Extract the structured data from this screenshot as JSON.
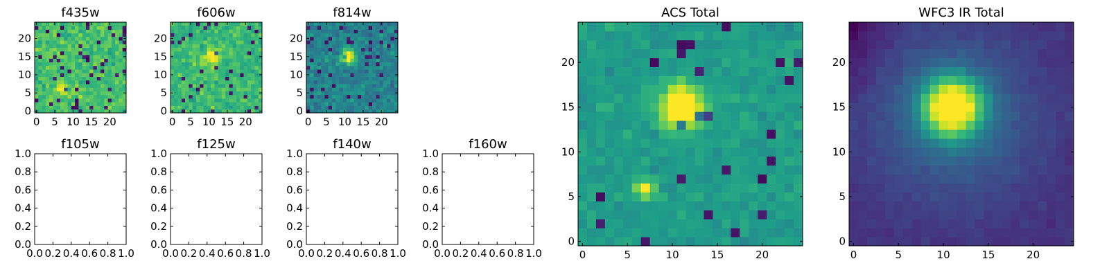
{
  "figure": {
    "panels": [
      {
        "id": "f435w",
        "title": "f435w",
        "kind": "image",
        "variant": "f435w",
        "x_ticks": [
          "0",
          "5",
          "10",
          "15",
          "20"
        ],
        "y_ticks": [
          "0",
          "5",
          "10",
          "15",
          "20"
        ]
      },
      {
        "id": "f606w",
        "title": "f606w",
        "kind": "image",
        "variant": "f606w",
        "x_ticks": [
          "0",
          "5",
          "10",
          "15",
          "20"
        ],
        "y_ticks": [
          "0",
          "5",
          "10",
          "15",
          "20"
        ]
      },
      {
        "id": "f814w",
        "title": "f814w",
        "kind": "image",
        "variant": "f814w",
        "x_ticks": [
          "0",
          "5",
          "10",
          "15",
          "20"
        ],
        "y_ticks": [
          "0",
          "5",
          "10",
          "15",
          "20"
        ]
      },
      {
        "id": "f105w",
        "title": "f105w",
        "kind": "empty",
        "x_ticks": [
          "0.0",
          "0.2",
          "0.4",
          "0.6",
          "0.8",
          "1.0"
        ],
        "y_ticks": [
          "0.0",
          "0.2",
          "0.4",
          "0.6",
          "0.8",
          "1.0"
        ]
      },
      {
        "id": "f125w",
        "title": "f125w",
        "kind": "empty",
        "x_ticks": [
          "0.0",
          "0.2",
          "0.4",
          "0.6",
          "0.8",
          "1.0"
        ],
        "y_ticks": [
          "0.0",
          "0.2",
          "0.4",
          "0.6",
          "0.8",
          "1.0"
        ]
      },
      {
        "id": "f140w",
        "title": "f140w",
        "kind": "empty",
        "x_ticks": [
          "0.0",
          "0.2",
          "0.4",
          "0.6",
          "0.8",
          "1.0"
        ],
        "y_ticks": [
          "0.0",
          "0.2",
          "0.4",
          "0.6",
          "0.8",
          "1.0"
        ]
      },
      {
        "id": "f160w",
        "title": "f160w",
        "kind": "empty",
        "x_ticks": [
          "0.0",
          "0.2",
          "0.4",
          "0.6",
          "0.8",
          "1.0"
        ],
        "y_ticks": [
          "0.0",
          "0.2",
          "0.4",
          "0.6",
          "0.8",
          "1.0"
        ]
      },
      {
        "id": "acs-total",
        "title": "ACS Total",
        "kind": "image",
        "variant": "acs",
        "x_ticks": [
          "0",
          "5",
          "10",
          "15",
          "20"
        ],
        "y_ticks": [
          "0",
          "5",
          "10",
          "15",
          "20"
        ]
      },
      {
        "id": "wfc3-ir-total",
        "title": "WFC3 IR Total",
        "kind": "image",
        "variant": "wfc3",
        "x_ticks": [
          "0",
          "5",
          "10",
          "15",
          "20"
        ],
        "y_ticks": [
          "0",
          "5",
          "10",
          "15",
          "20"
        ]
      }
    ]
  },
  "chart_data": [
    {
      "type": "heatmap",
      "title": "f435w",
      "colormap": "viridis",
      "grid_size": [
        25,
        25
      ],
      "xlim": [
        -0.5,
        24.5
      ],
      "ylim": [
        -0.5,
        24.5
      ],
      "grid": false,
      "features": [
        {
          "x": 7,
          "y": 6,
          "note": "faint bright pixel"
        }
      ]
    },
    {
      "type": "heatmap",
      "title": "f606w",
      "colormap": "viridis",
      "grid_size": [
        25,
        25
      ],
      "xlim": [
        -0.5,
        24.5
      ],
      "ylim": [
        -0.5,
        24.5
      ],
      "grid": false,
      "features": [
        {
          "x": 11,
          "y": 15
        }
      ]
    },
    {
      "type": "heatmap",
      "title": "f814w",
      "colormap": "viridis",
      "grid_size": [
        25,
        25
      ],
      "xlim": [
        -0.5,
        24.5
      ],
      "ylim": [
        -0.5,
        24.5
      ],
      "grid": false,
      "features": [
        {
          "x": 11,
          "y": 15
        }
      ]
    },
    {
      "type": "heatmap",
      "title": "f105w",
      "empty": true,
      "xlim": [
        0,
        1
      ],
      "ylim": [
        0,
        1
      ]
    },
    {
      "type": "heatmap",
      "title": "f125w",
      "empty": true,
      "xlim": [
        0,
        1
      ],
      "ylim": [
        0,
        1
      ]
    },
    {
      "type": "heatmap",
      "title": "f140w",
      "empty": true,
      "xlim": [
        0,
        1
      ],
      "ylim": [
        0,
        1
      ]
    },
    {
      "type": "heatmap",
      "title": "f160w",
      "empty": true,
      "xlim": [
        0,
        1
      ],
      "ylim": [
        0,
        1
      ]
    },
    {
      "type": "heatmap",
      "title": "ACS Total",
      "colormap": "viridis",
      "grid_size": [
        25,
        25
      ],
      "xlim": [
        -0.5,
        24.5
      ],
      "ylim": [
        -0.5,
        24.5
      ],
      "grid": false,
      "features": [
        {
          "x": 11,
          "y": 15
        },
        {
          "x": 7,
          "y": 6
        }
      ]
    },
    {
      "type": "heatmap",
      "title": "WFC3 IR Total",
      "colormap": "viridis",
      "grid_size": [
        25,
        25
      ],
      "xlim": [
        -0.5,
        24.5
      ],
      "ylim": [
        -0.5,
        24.5
      ],
      "grid": false,
      "features": [
        {
          "x": 11,
          "y": 15
        }
      ]
    }
  ]
}
